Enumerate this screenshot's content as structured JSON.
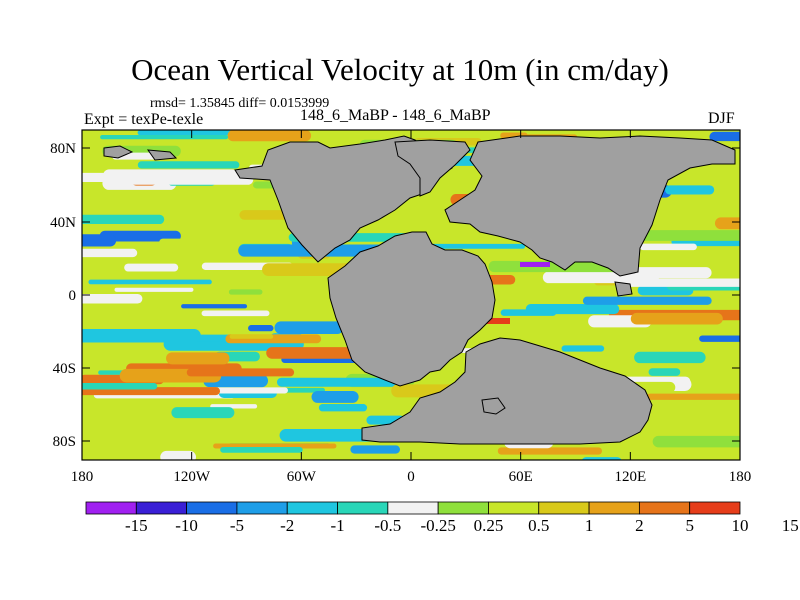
{
  "title": "Ocean Vertical Velocity at 10m (in cm/day)",
  "stats_line": "rmsd= 1.35845 diff= 0.0153999",
  "left_label": "Expt = texPe-texle",
  "center_label": "148_6_MaBP - 148_6_MaBP",
  "right_label": "DJF",
  "y_axis": {
    "ticks": [
      "80N",
      "40N",
      "0",
      "40S",
      "80S"
    ]
  },
  "x_axis": {
    "ticks": [
      "180",
      "120W",
      "60W",
      "0",
      "60E",
      "120E",
      "180"
    ]
  },
  "colorbar": {
    "labels": [
      "-15",
      "-10",
      "-5",
      "-2",
      "-1",
      "-0.5",
      "-0.25",
      "0.25",
      "0.5",
      "1",
      "2",
      "5",
      "10",
      "15"
    ],
    "colors": [
      "#a020f0",
      "#3a1fd6",
      "#1a6ee6",
      "#1e9ee8",
      "#1fc6e0",
      "#29d6b8",
      "#f2f2f2",
      "#8fe03c",
      "#c8e62a",
      "#d9c91a",
      "#e6a21a",
      "#e6741a",
      "#e63d1a"
    ]
  },
  "land_color": "#a0a0a0"
}
